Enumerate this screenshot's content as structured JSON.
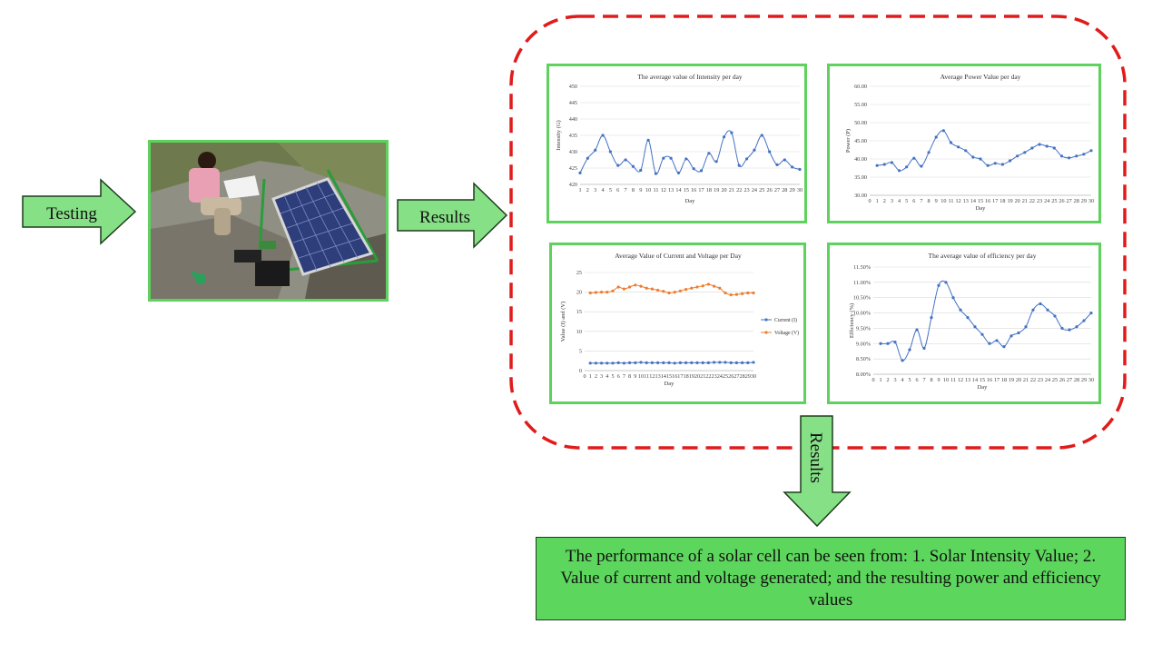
{
  "flow": {
    "testing_label": "Testing",
    "results_label_1": "Results",
    "results_label_2": "Results",
    "conclusion_text": "The performance of a solar cell can be seen from: 1. Solar Intensity Value; 2. Value of current and voltage generated; and the resulting power and efficiency values"
  },
  "colors": {
    "arrow_fill": "#86e086",
    "box_border": "#5fd15f",
    "dashed_border": "#e01b1b",
    "blue_series": "#4472c4",
    "orange_series": "#ed7d31"
  },
  "chart_data": [
    {
      "type": "line",
      "title": "The average value of Intensity per day",
      "xlabel": "Day",
      "ylabel": "Intensity (G)",
      "x": [
        1,
        2,
        3,
        4,
        5,
        6,
        7,
        8,
        9,
        10,
        11,
        12,
        13,
        14,
        15,
        16,
        17,
        18,
        19,
        20,
        21,
        22,
        23,
        24,
        25,
        26,
        27,
        28,
        29,
        30
      ],
      "xticks": [
        1,
        2,
        3,
        4,
        5,
        6,
        7,
        8,
        9,
        10,
        11,
        12,
        13,
        14,
        15,
        16,
        17,
        18,
        19,
        20,
        21,
        22,
        23,
        24,
        25,
        26,
        27,
        28,
        29,
        30
      ],
      "ylim": [
        420,
        450
      ],
      "yticks": [
        "420",
        "425",
        "430",
        "435",
        "440",
        "445",
        "450"
      ],
      "grid": true,
      "series": [
        {
          "values": [
            423.5,
            428,
            430.5,
            435,
            430,
            425.8,
            427.5,
            425.5,
            424.3,
            433.5,
            423.3,
            428,
            428,
            423.5,
            427.8,
            424.8,
            424.2,
            429.5,
            427,
            434.5,
            435.8,
            425.8,
            427.8,
            430.5,
            435,
            430,
            426,
            427.5,
            425.3,
            424.6
          ]
        }
      ]
    },
    {
      "type": "line",
      "title": "Average Power Value per day",
      "xlabel": "Day",
      "ylabel": "Power (P)",
      "x": [
        1,
        2,
        3,
        4,
        5,
        6,
        7,
        8,
        9,
        10,
        11,
        12,
        13,
        14,
        15,
        16,
        17,
        18,
        19,
        20,
        21,
        22,
        23,
        24,
        25,
        26,
        27,
        28,
        29,
        30
      ],
      "xticks": [
        0,
        1,
        2,
        3,
        4,
        5,
        6,
        7,
        8,
        9,
        10,
        11,
        12,
        13,
        14,
        15,
        16,
        17,
        18,
        19,
        20,
        21,
        22,
        23,
        24,
        25,
        26,
        27,
        28,
        29,
        30
      ],
      "ylim": [
        30,
        60
      ],
      "yticks": [
        "30.00",
        "35.00",
        "40.00",
        "45.00",
        "50.00",
        "55.00",
        "60.00"
      ],
      "grid": true,
      "series": [
        {
          "values": [
            38.2,
            38.5,
            39,
            36.8,
            37.8,
            40.2,
            38,
            41.8,
            46,
            47.8,
            44.5,
            43.3,
            42.3,
            40.5,
            40,
            38.2,
            38.8,
            38.5,
            39.5,
            40.8,
            41.8,
            43,
            44,
            43.5,
            43,
            40.8,
            40.3,
            40.8,
            41.3,
            42.3
          ]
        }
      ]
    },
    {
      "type": "line",
      "title": "Average Value of Current and Voltage per Day",
      "xlabel": "Day",
      "ylabel": "Value (I) and (V)",
      "x": [
        1,
        2,
        3,
        4,
        5,
        6,
        7,
        8,
        9,
        10,
        11,
        12,
        13,
        14,
        15,
        16,
        17,
        18,
        19,
        20,
        21,
        22,
        23,
        24,
        25,
        26,
        27,
        28,
        29,
        30
      ],
      "xticks": [
        0,
        1,
        2,
        3,
        4,
        5,
        6,
        7,
        8,
        9,
        10,
        11,
        12,
        13,
        14,
        15,
        16,
        17,
        18,
        19,
        20,
        21,
        22,
        23,
        24,
        25,
        26,
        27,
        28,
        29,
        30
      ],
      "ylim": [
        0,
        25
      ],
      "yticks": [
        "0",
        "5",
        "10",
        "15",
        "20",
        "25"
      ],
      "grid": true,
      "legend": "right",
      "series": [
        {
          "name": "Current (I)",
          "values": [
            1.9,
            1.9,
            1.9,
            1.9,
            1.9,
            2,
            1.9,
            2,
            2,
            2.1,
            2,
            2,
            2,
            2,
            2,
            1.9,
            2,
            2,
            2,
            2,
            2,
            2,
            2.1,
            2.1,
            2.1,
            2,
            2,
            2,
            2,
            2.1
          ]
        },
        {
          "name": "Voltage (V)",
          "values": [
            19.8,
            19.9,
            20,
            20,
            20.3,
            21.3,
            20.8,
            21.3,
            21.8,
            21.5,
            21,
            20.8,
            20.5,
            20.2,
            19.8,
            20,
            20.3,
            20.7,
            21,
            21.3,
            21.6,
            22,
            21.5,
            21,
            19.8,
            19.3,
            19.4,
            19.6,
            19.8,
            19.8
          ]
        }
      ]
    },
    {
      "type": "line",
      "title": "The average value of efficiency per day",
      "xlabel": "Day",
      "ylabel": "Efficiency (%)",
      "x": [
        1,
        2,
        3,
        4,
        5,
        6,
        7,
        8,
        9,
        10,
        11,
        12,
        13,
        14,
        15,
        16,
        17,
        18,
        19,
        20,
        21,
        22,
        23,
        24,
        25,
        26,
        27,
        28,
        29,
        30
      ],
      "xticks": [
        0,
        1,
        2,
        3,
        4,
        5,
        6,
        7,
        8,
        9,
        10,
        11,
        12,
        13,
        14,
        15,
        16,
        17,
        18,
        19,
        20,
        21,
        22,
        23,
        24,
        25,
        26,
        27,
        28,
        29,
        30
      ],
      "ylim": [
        8.0,
        11.5
      ],
      "yticks": [
        "8.00%",
        "8.50%",
        "9.00%",
        "9.50%",
        "10.00%",
        "10.50%",
        "11.00%",
        "11.50%"
      ],
      "grid": true,
      "series": [
        {
          "values": [
            9.0,
            9.0,
            9.05,
            8.45,
            8.8,
            9.45,
            8.85,
            9.85,
            10.9,
            11.0,
            10.5,
            10.1,
            9.85,
            9.55,
            9.3,
            9.0,
            9.1,
            8.9,
            9.25,
            9.35,
            9.55,
            10.1,
            10.3,
            10.1,
            9.9,
            9.5,
            9.45,
            9.55,
            9.75,
            10.0
          ]
        }
      ]
    }
  ]
}
